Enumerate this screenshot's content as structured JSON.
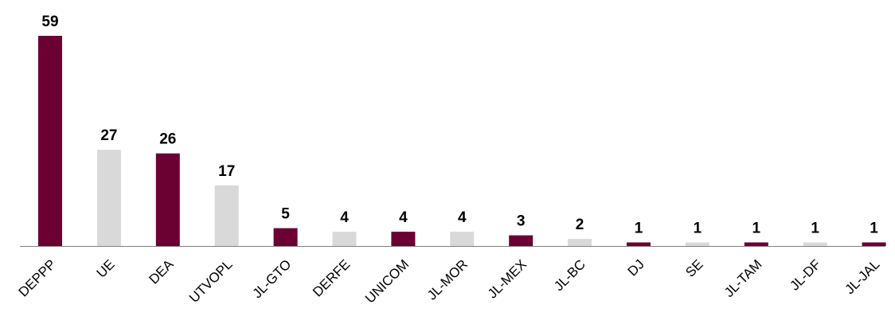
{
  "chart_data": {
    "type": "bar",
    "title": "",
    "xlabel": "",
    "ylabel": "",
    "ylim": [
      0,
      59
    ],
    "grid": false,
    "legend": "none",
    "categories": [
      "DEPPP",
      "UE",
      "DEA",
      "UTVOPL",
      "JL-GTO",
      "DERFE",
      "UNICOM",
      "JL-MOR",
      "JL-MEX",
      "JL-BC",
      "DJ",
      "SE",
      "JL-TAM",
      "JL-DF",
      "JL-JAL"
    ],
    "series": [
      {
        "values": [
          59,
          27,
          26,
          17,
          5,
          4,
          4,
          4,
          3,
          2,
          1,
          1,
          1,
          1,
          1
        ]
      }
    ],
    "bar_colors": [
      "#6b0033",
      "#d9d9d9",
      "#6b0033",
      "#d9d9d9",
      "#6b0033",
      "#d9d9d9",
      "#6b0033",
      "#d9d9d9",
      "#6b0033",
      "#d9d9d9",
      "#6b0033",
      "#d9d9d9",
      "#6b0033",
      "#d9d9d9",
      "#6b0033"
    ],
    "axis_color": "#7f7f7f"
  }
}
